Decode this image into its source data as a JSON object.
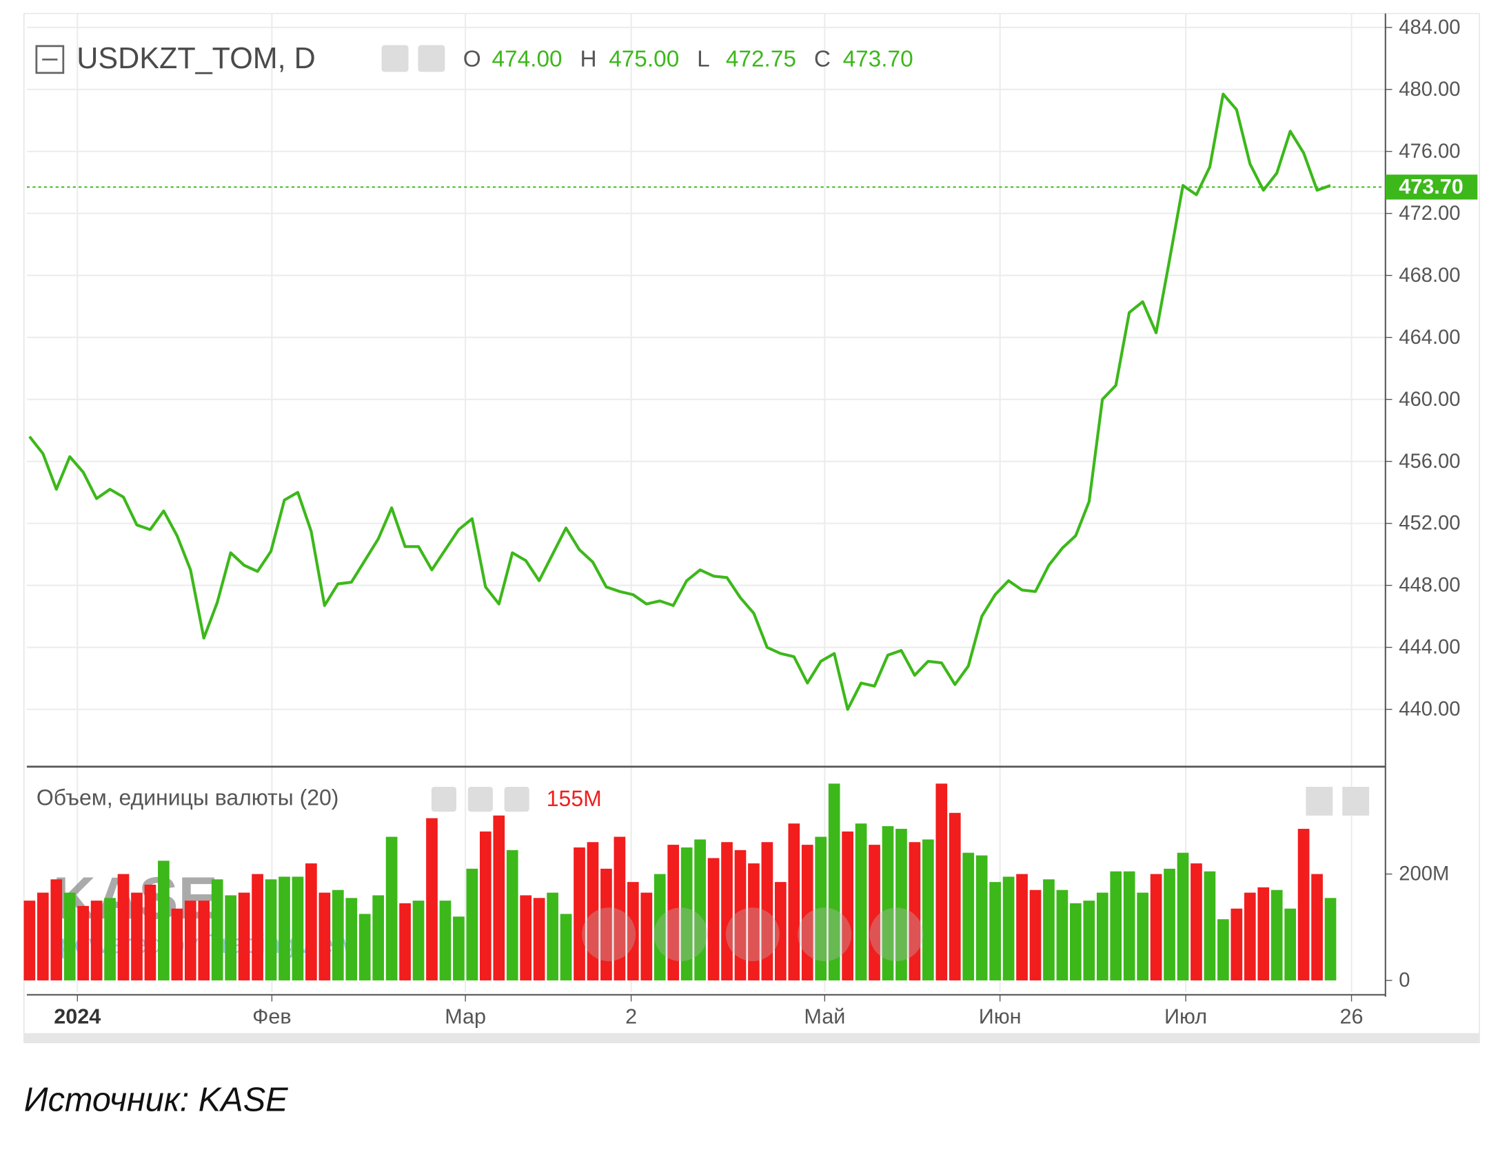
{
  "chart_data": [
    {
      "type": "line",
      "title": "USDKZT_TOM, D",
      "ohlc": [
        {
          "name": "O",
          "value": 474,
          "label": "474.00"
        },
        {
          "name": "H",
          "value": 475,
          "label": "475.00"
        },
        {
          "name": "L",
          "value": 472.75,
          "label": "472.75"
        },
        {
          "name": "C",
          "value": 473.7,
          "label": "473.70"
        }
      ],
      "values": [
        457.6,
        456.5,
        454.2,
        456.3,
        455.3,
        453.6,
        454.2,
        453.7,
        451.9,
        451.6,
        452.8,
        451.2,
        449.0,
        444.6,
        446.9,
        450.1,
        449.3,
        448.9,
        450.2,
        453.5,
        454.0,
        451.5,
        446.7,
        448.1,
        448.2,
        449.6,
        451.0,
        453.0,
        450.5,
        450.5,
        449.0,
        450.3,
        451.6,
        452.3,
        447.9,
        446.8,
        450.1,
        449.6,
        448.3,
        450.0,
        451.7,
        450.3,
        449.5,
        447.9,
        447.6,
        447.4,
        446.8,
        447.0,
        446.7,
        448.3,
        449.0,
        448.6,
        448.5,
        447.2,
        446.2,
        444.0,
        443.6,
        443.4,
        441.7,
        443.1,
        443.6,
        440.0,
        441.7,
        441.5,
        443.5,
        443.8,
        442.2,
        443.1,
        443.0,
        441.6,
        442.8,
        446.0,
        447.4,
        448.3,
        447.7,
        447.6,
        449.3,
        450.4,
        451.2,
        453.4,
        460.0,
        460.9,
        465.6,
        466.3,
        464.3,
        469.0,
        473.8,
        473.2,
        475.0,
        479.7,
        478.7,
        475.2,
        473.5,
        474.6,
        477.3,
        475.9,
        473.5,
        473.8
      ],
      "color": "#3cb81a",
      "close_line": true,
      "xlim": [
        -0.2,
        101.1
      ],
      "xticks": [
        {
          "value": 3.57,
          "label": "2024"
        },
        {
          "value": 18.07,
          "label": "Фев"
        },
        {
          "value": 32.5,
          "label": "Мар"
        },
        {
          "value": 44.86,
          "label": "2"
        },
        {
          "value": 59.29,
          "label": "Май"
        },
        {
          "value": 72.36,
          "label": "Июн"
        },
        {
          "value": 86.21,
          "label": "Июл"
        },
        {
          "value": 98.57,
          "label": "26"
        }
      ],
      "ylim": [
        436.3,
        484.9
      ],
      "yticks": [
        {
          "value": 440,
          "label": "440.00"
        },
        {
          "value": 444,
          "label": "444.00"
        },
        {
          "value": 448,
          "label": "448.00"
        },
        {
          "value": 452,
          "label": "452.00"
        },
        {
          "value": 456,
          "label": "456.00"
        },
        {
          "value": 460,
          "label": "460.00"
        },
        {
          "value": 464,
          "label": "464.00"
        },
        {
          "value": 468,
          "label": "468.00"
        },
        {
          "value": 472,
          "label": "472.00"
        },
        {
          "value": 476,
          "label": "476.00"
        },
        {
          "value": 480,
          "label": "480.00"
        },
        {
          "value": 484,
          "label": "484.00"
        }
      ],
      "grid": true
    },
    {
      "type": "bar",
      "title": "Объем, единицы валюты (20)",
      "current_label": "155M",
      "values": [
        150000000,
        165000000,
        190000000,
        165000000,
        140000000,
        150000000,
        155000000,
        200000000,
        165000000,
        180000000,
        225000000,
        135000000,
        150000000,
        150000000,
        190000000,
        160000000,
        165000000,
        200000000,
        190000000,
        195000000,
        195000000,
        220000000,
        165000000,
        170000000,
        155000000,
        125000000,
        160000000,
        270000000,
        145000000,
        150000000,
        305000000,
        150000000,
        120000000,
        210000000,
        280000000,
        310000000,
        245000000,
        160000000,
        155000000,
        165000000,
        125000000,
        250000000,
        260000000,
        210000000,
        270000000,
        185000000,
        165000000,
        200000000,
        255000000,
        250000000,
        265000000,
        230000000,
        260000000,
        245000000,
        220000000,
        260000000,
        185000000,
        295000000,
        255000000,
        270000000,
        370000000,
        280000000,
        295000000,
        255000000,
        290000000,
        285000000,
        260000000,
        265000000,
        370000000,
        315000000,
        240000000,
        235000000,
        185000000,
        195000000,
        200000000,
        170000000,
        190000000,
        170000000,
        145000000,
        150000000,
        165000000,
        205000000,
        205000000,
        165000000,
        200000000,
        210000000,
        240000000,
        220000000,
        205000000,
        115000000,
        135000000,
        165000000,
        175000000,
        170000000,
        135000000,
        285000000,
        200000000,
        155000000
      ],
      "up_color": "#3cb81a",
      "down_color": "#f21d1d",
      "ylim": [
        -21600000,
        401800000
      ],
      "yticks": [
        0,
        {
          "value": 200000000,
          "label": "200M"
        }
      ]
    }
  ],
  "watermark": "KASE",
  "watermark_sub": "powered by TradingView",
  "caption": "Источник: KASE"
}
